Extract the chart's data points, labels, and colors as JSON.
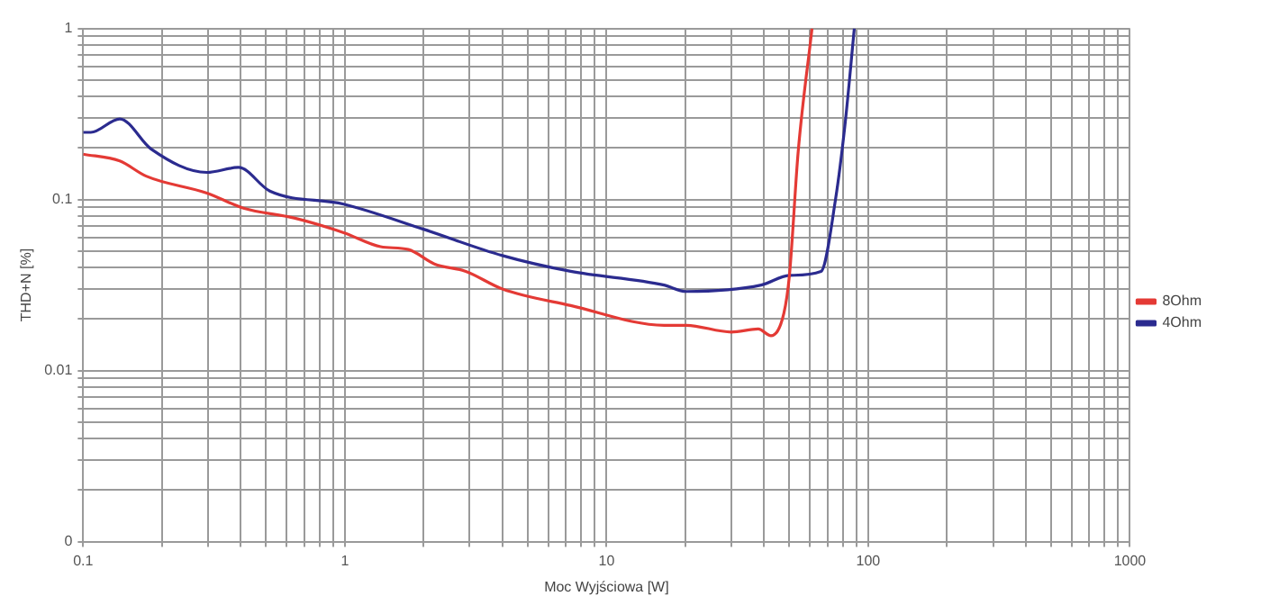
{
  "chart_data": {
    "type": "line",
    "xlabel": "Moc Wyjściowa [W]",
    "ylabel": "THD+N [%]",
    "log": "xy",
    "grid": true,
    "legend": "right",
    "xlim": [
      0.1,
      1000
    ],
    "ylim": [
      0.001,
      1
    ],
    "xticks": [
      0.1,
      {
        "value": 0.2,
        "label": null
      },
      {
        "value": 0.3,
        "label": null
      },
      {
        "value": 0.4,
        "label": null
      },
      {
        "value": 0.5,
        "label": null
      },
      {
        "value": 0.6,
        "label": null
      },
      {
        "value": 0.7,
        "label": null
      },
      {
        "value": 0.8,
        "label": null
      },
      {
        "value": 0.9,
        "label": null
      },
      1,
      {
        "value": 2,
        "label": null
      },
      {
        "value": 3,
        "label": null
      },
      {
        "value": 4,
        "label": null
      },
      {
        "value": 5,
        "label": null
      },
      {
        "value": 6,
        "label": null
      },
      {
        "value": 7,
        "label": null
      },
      {
        "value": 8,
        "label": null
      },
      {
        "value": 9,
        "label": null
      },
      10,
      {
        "value": 20,
        "label": null
      },
      {
        "value": 30,
        "label": null
      },
      {
        "value": 40,
        "label": null
      },
      {
        "value": 50,
        "label": null
      },
      {
        "value": 60,
        "label": null
      },
      {
        "value": 70,
        "label": null
      },
      {
        "value": 80,
        "label": null
      },
      {
        "value": 90,
        "label": null
      },
      100,
      {
        "value": 200,
        "label": null
      },
      {
        "value": 300,
        "label": null
      },
      {
        "value": 400,
        "label": null
      },
      {
        "value": 500,
        "label": null
      },
      {
        "value": 600,
        "label": null
      },
      {
        "value": 700,
        "label": null
      },
      {
        "value": 800,
        "label": null
      },
      {
        "value": 900,
        "label": null
      },
      1000
    ],
    "yticks": [
      {
        "value": 0.001,
        "label": "0"
      },
      {
        "value": 0.002,
        "label": null
      },
      {
        "value": 0.003,
        "label": null
      },
      {
        "value": 0.004,
        "label": null
      },
      {
        "value": 0.005,
        "label": null
      },
      {
        "value": 0.006,
        "label": null
      },
      {
        "value": 0.007,
        "label": null
      },
      {
        "value": 0.008,
        "label": null
      },
      {
        "value": 0.009,
        "label": null
      },
      0.01,
      {
        "value": 0.02,
        "label": null
      },
      {
        "value": 0.03,
        "label": null
      },
      {
        "value": 0.04,
        "label": null
      },
      {
        "value": 0.05,
        "label": null
      },
      {
        "value": 0.06,
        "label": null
      },
      {
        "value": 0.07,
        "label": null
      },
      {
        "value": 0.08,
        "label": null
      },
      {
        "value": 0.09,
        "label": null
      },
      0.1,
      {
        "value": 0.2,
        "label": null
      },
      {
        "value": 0.3,
        "label": null
      },
      {
        "value": 0.4,
        "label": null
      },
      {
        "value": 0.5,
        "label": null
      },
      {
        "value": 0.6,
        "label": null
      },
      {
        "value": 0.7,
        "label": null
      },
      {
        "value": 0.8,
        "label": null
      },
      {
        "value": 0.9,
        "label": null
      },
      1
    ],
    "series": [
      {
        "name": "8Ohm",
        "color": "#e43a35",
        "x": [
          0.1,
          0.138,
          0.174,
          0.297,
          0.41,
          0.64,
          0.99,
          1.37,
          1.75,
          2.2,
          2.9,
          4,
          7.3,
          16.6,
          20.1,
          30,
          38,
          42.5,
          47.6,
          50,
          54,
          61
        ],
        "values": [
          0.184,
          0.168,
          0.137,
          0.109,
          0.089,
          0.078,
          0.064,
          0.053,
          0.051,
          0.042,
          0.038,
          0.03,
          0.024,
          0.0184,
          0.0184,
          0.0168,
          0.0175,
          0.016,
          0.0216,
          0.036,
          0.19,
          1
        ]
      },
      {
        "name": "4Ohm",
        "color": "#2b2b8f",
        "x": [
          0.1,
          0.107,
          0.138,
          0.182,
          0.297,
          0.392,
          0.517,
          0.99,
          2,
          4,
          7.3,
          16.6,
          20.1,
          39,
          50,
          66,
          75,
          81.6,
          88.5
        ],
        "values": [
          0.247,
          0.247,
          0.296,
          0.197,
          0.144,
          0.154,
          0.112,
          0.094,
          0.067,
          0.047,
          0.038,
          0.0316,
          0.029,
          0.0316,
          0.036,
          0.038,
          0.1,
          0.277,
          1
        ]
      }
    ]
  }
}
